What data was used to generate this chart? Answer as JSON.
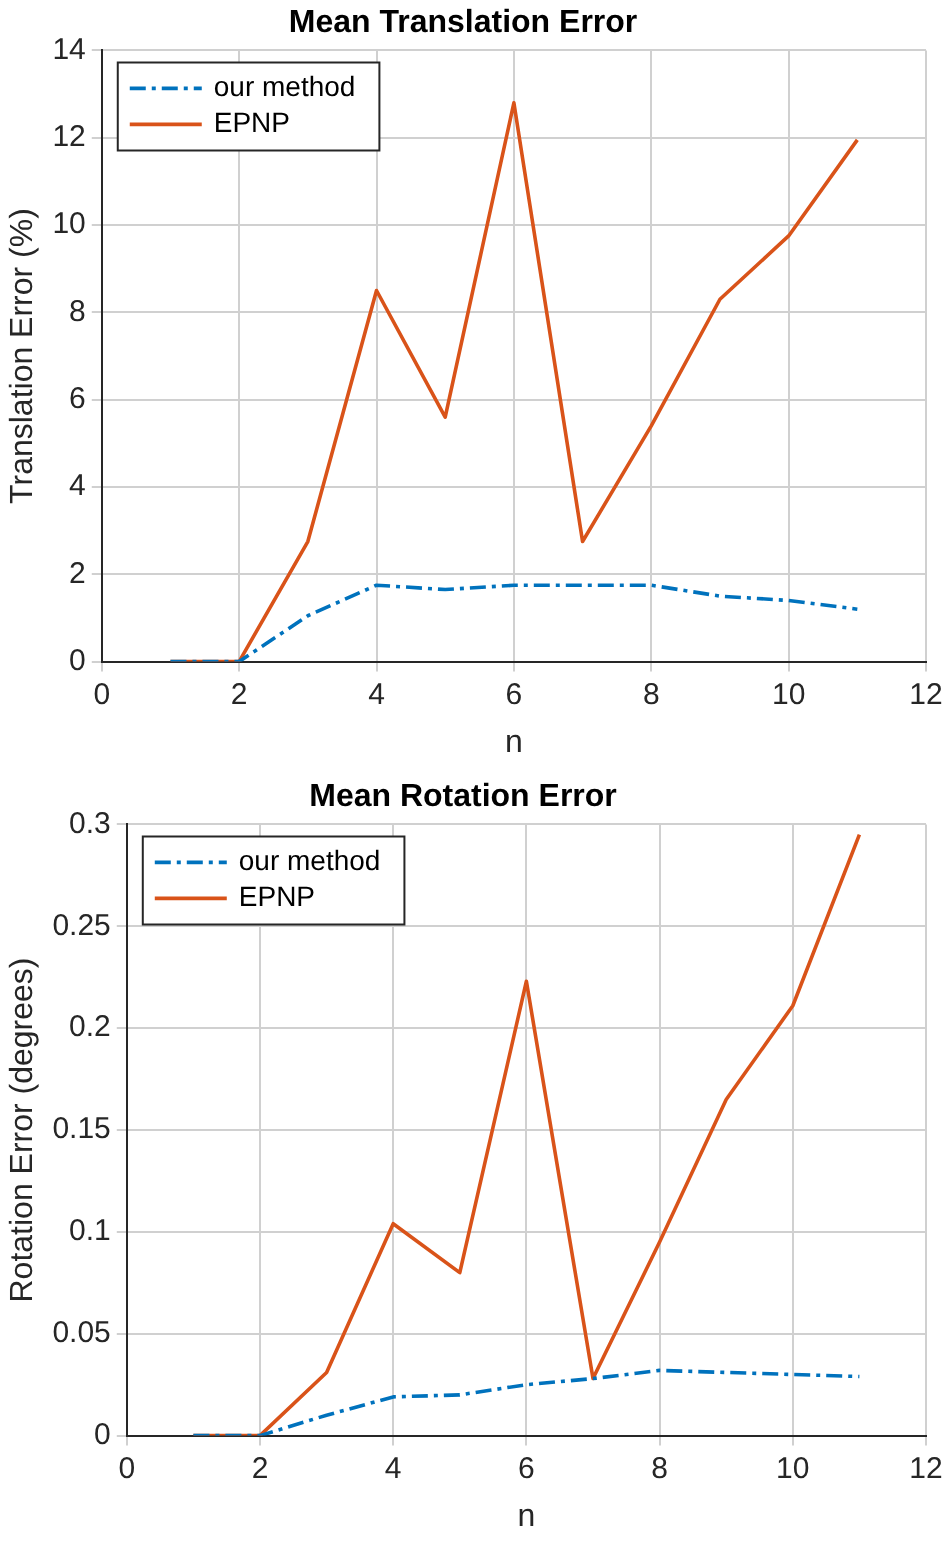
{
  "chart_data": [
    {
      "type": "line",
      "title": "Mean Translation Error",
      "xlabel": "n",
      "ylabel": "Translation Error (%)",
      "x": [
        1,
        2,
        3,
        4,
        5,
        6,
        7,
        8,
        9,
        10,
        11
      ],
      "xlim": [
        0,
        12
      ],
      "xticks": [
        0,
        2,
        4,
        6,
        8,
        10,
        12
      ],
      "ylim": [
        0,
        14
      ],
      "yticks": [
        0,
        2,
        4,
        6,
        8,
        10,
        12,
        14
      ],
      "grid": true,
      "legend": "top left",
      "marker": "none",
      "series": [
        {
          "name": "our method",
          "color": "#0072bd",
          "line_style": "dashed",
          "values": [
            0,
            0,
            1.05,
            1.75,
            1.65,
            1.75,
            1.75,
            1.75,
            1.5,
            1.4,
            1.2
          ]
        },
        {
          "name": "EPNP",
          "color": "#d95319",
          "line_style": "solid",
          "values": [
            0,
            0,
            2.75,
            8.5,
            5.6,
            12.8,
            2.75,
            5.4,
            8.3,
            9.75,
            11.95
          ]
        }
      ]
    },
    {
      "type": "line",
      "title": "Mean Rotation Error",
      "xlabel": "n",
      "ylabel": "Rotation Error (degrees)",
      "x": [
        1,
        2,
        3,
        4,
        5,
        6,
        7,
        8,
        9,
        10,
        11
      ],
      "xlim": [
        0,
        12
      ],
      "xticks": [
        0,
        2,
        4,
        6,
        8,
        10,
        12
      ],
      "ylim": [
        0,
        0.3
      ],
      "yticks": [
        0,
        0.05,
        0.1,
        0.15,
        0.2,
        0.25,
        0.3
      ],
      "grid": true,
      "legend": "top left",
      "marker": "none",
      "series": [
        {
          "name": "our method",
          "color": "#0072bd",
          "line_style": "dashed",
          "values": [
            0,
            0,
            0.01,
            0.019,
            0.02,
            0.025,
            0.028,
            0.032,
            0.031,
            0.03,
            0.029
          ]
        },
        {
          "name": "EPNP",
          "color": "#d95319",
          "line_style": "solid",
          "values": [
            0,
            0,
            0.031,
            0.104,
            0.08,
            0.223,
            0.028,
            0.095,
            0.165,
            0.211,
            0.295
          ]
        }
      ]
    }
  ]
}
